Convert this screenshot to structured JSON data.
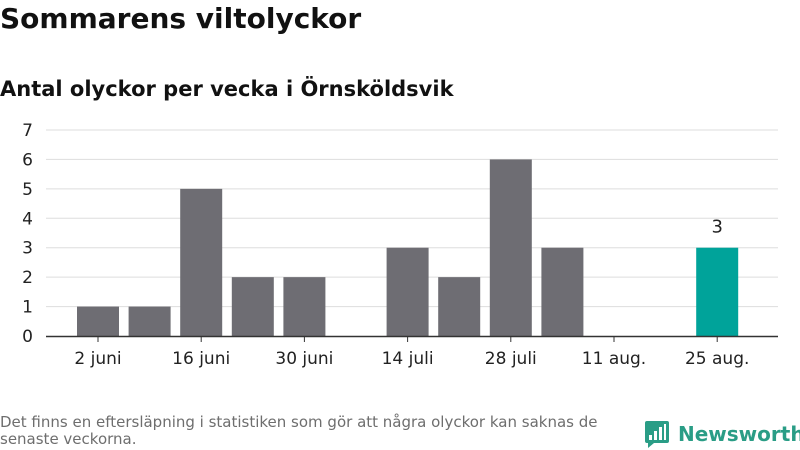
{
  "brand": {
    "name": "Newsworthy"
  },
  "colors": {
    "bar": "#6e6d73",
    "highlight": "#00a39a",
    "grid": "#dddddd",
    "axis": "#333333",
    "logo": "#2a9d86"
  },
  "footnote": "Det finns en eftersläpning i statistiken som gör att några olyckor kan saknas de senaste veckorna.",
  "chart_data": {
    "type": "bar",
    "title": "Sommarens viltolyckor",
    "subtitle": "Antal olyckor per vecka i Örnsköldsvik",
    "xlabel": "",
    "ylabel": "",
    "ylim": [
      0,
      7
    ],
    "yticks": [
      0,
      1,
      2,
      3,
      4,
      5,
      6,
      7
    ],
    "xtick_labels": [
      "2 juni",
      "16 juni",
      "30 juni",
      "14 juli",
      "28 juli",
      "11 aug.",
      "25 aug."
    ],
    "values": [
      1,
      1,
      5,
      2,
      2,
      0,
      3,
      2,
      6,
      3,
      0,
      0,
      3
    ],
    "highlight_index": 12,
    "data_labels": [
      {
        "index": 12,
        "text": "3"
      }
    ],
    "grid": true,
    "legend": "none"
  }
}
